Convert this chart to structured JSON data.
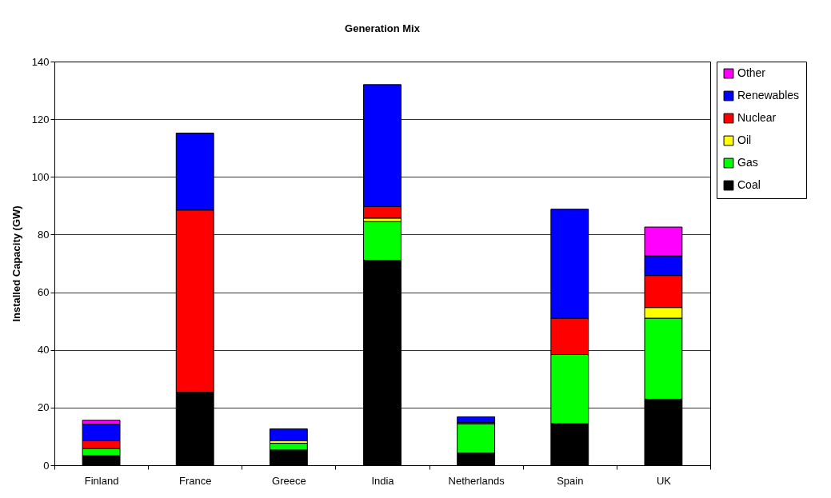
{
  "chart_data": {
    "type": "bar",
    "title": "Generation Mix",
    "ylabel": "Installed Capacity (GW)",
    "categories": [
      "Finland",
      "France",
      "Greece",
      "India",
      "Netherlands",
      "Spain",
      "UK"
    ],
    "stacked": true,
    "ylim": [
      0,
      140
    ],
    "yticks": [
      0,
      20,
      40,
      60,
      80,
      100,
      120,
      140
    ],
    "grid": "y",
    "legend": "right",
    "series": [
      {
        "name": "Coal",
        "color": "#000000",
        "values": [
          3.3,
          25.3,
          5.3,
          71.1,
          4.2,
          14.4,
          22.9
        ]
      },
      {
        "name": "Gas",
        "color": "#00ff00",
        "values": [
          2.5,
          null,
          2.3,
          13.4,
          10.2,
          24.0,
          28.1
        ]
      },
      {
        "name": "Oil",
        "color": "#ffff00",
        "values": [
          null,
          null,
          0.9,
          1.2,
          null,
          null,
          3.7
        ]
      },
      {
        "name": "Nuclear",
        "color": "#ff0000",
        "values": [
          2.7,
          63.2,
          null,
          4.0,
          0.4,
          12.6,
          11.1
        ]
      },
      {
        "name": "Renewables",
        "color": "#0000ff",
        "values": [
          5.7,
          26.7,
          4.1,
          42.3,
          2.0,
          37.8,
          6.8
        ]
      },
      {
        "name": "Other",
        "color": "#ff00ff",
        "values": [
          1.4,
          null,
          null,
          null,
          null,
          null,
          10.0
        ]
      }
    ]
  }
}
